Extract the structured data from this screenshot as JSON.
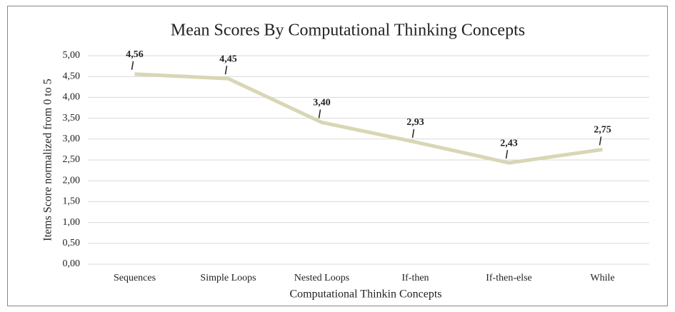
{
  "chart_data": {
    "type": "line",
    "title": "Mean Scores By Computational Thinking Concepts",
    "x_label": "Computational Thinkin Concepts",
    "y_label": "Items Score normalized from 0 to 5",
    "categories": [
      "Sequences",
      "Simple Loops",
      "Nested Loops",
      "If-then",
      "If-then-else",
      "While"
    ],
    "values": [
      4.56,
      4.45,
      3.4,
      2.93,
      2.43,
      2.75
    ],
    "value_labels": [
      "4,56",
      "4,45",
      "3,40",
      "2,93",
      "2,43",
      "2,75"
    ],
    "color": "#d8d6b4",
    "ylim": [
      0,
      5
    ],
    "yticks": [
      {
        "value": 0,
        "label": "0,00"
      },
      {
        "value": 0.5,
        "label": "0,50"
      },
      {
        "value": 1,
        "label": "1,00"
      },
      {
        "value": 1.5,
        "label": "1,50"
      },
      {
        "value": 2,
        "label": "2,00"
      },
      {
        "value": 2.5,
        "label": "2,50"
      },
      {
        "value": 3,
        "label": "3,00"
      },
      {
        "value": 3.5,
        "label": "3,50"
      },
      {
        "value": 4,
        "label": "4,00"
      },
      {
        "value": 4.5,
        "label": "4,50"
      },
      {
        "value": 5,
        "label": "5,00"
      }
    ],
    "grid": true
  }
}
